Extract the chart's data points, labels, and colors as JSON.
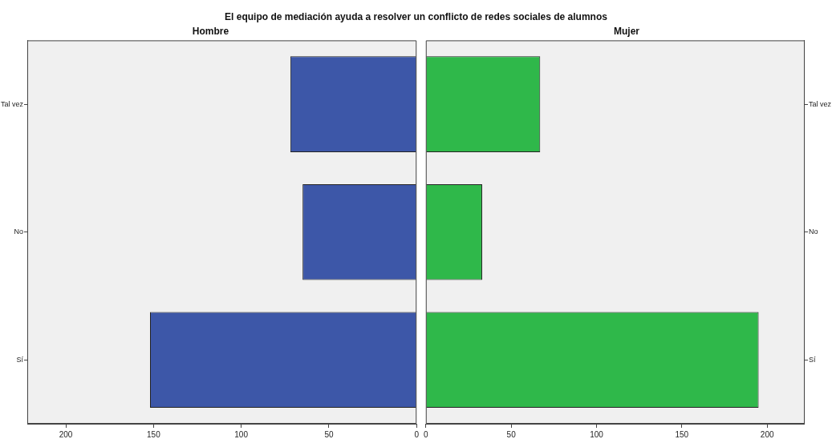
{
  "chart_data": [
    {
      "type": "bar",
      "orientation": "horizontal",
      "title": "El equipo de mediación ayuda a resolver un conflicto de redes sociales de alumnos",
      "subtitle": "Hombre",
      "categories": [
        "Tal vez",
        "No",
        "Sí"
      ],
      "series": [
        {
          "color": "#3d57a8",
          "values": [
            72,
            65,
            152
          ]
        }
      ],
      "xlim": [
        222,
        0
      ],
      "xticks": [
        200,
        150,
        100,
        50,
        0
      ],
      "grid": false,
      "legend": false
    },
    {
      "type": "bar",
      "orientation": "horizontal",
      "subtitle": "Mujer",
      "categories": [
        "Tal vez",
        "No",
        "Sí"
      ],
      "series": [
        {
          "color": "#2fb84a",
          "values": [
            67,
            33,
            195
          ]
        }
      ],
      "xlim": [
        0,
        222
      ],
      "xticks": [
        0,
        50,
        100,
        150,
        200
      ],
      "grid": false,
      "legend": false
    }
  ]
}
